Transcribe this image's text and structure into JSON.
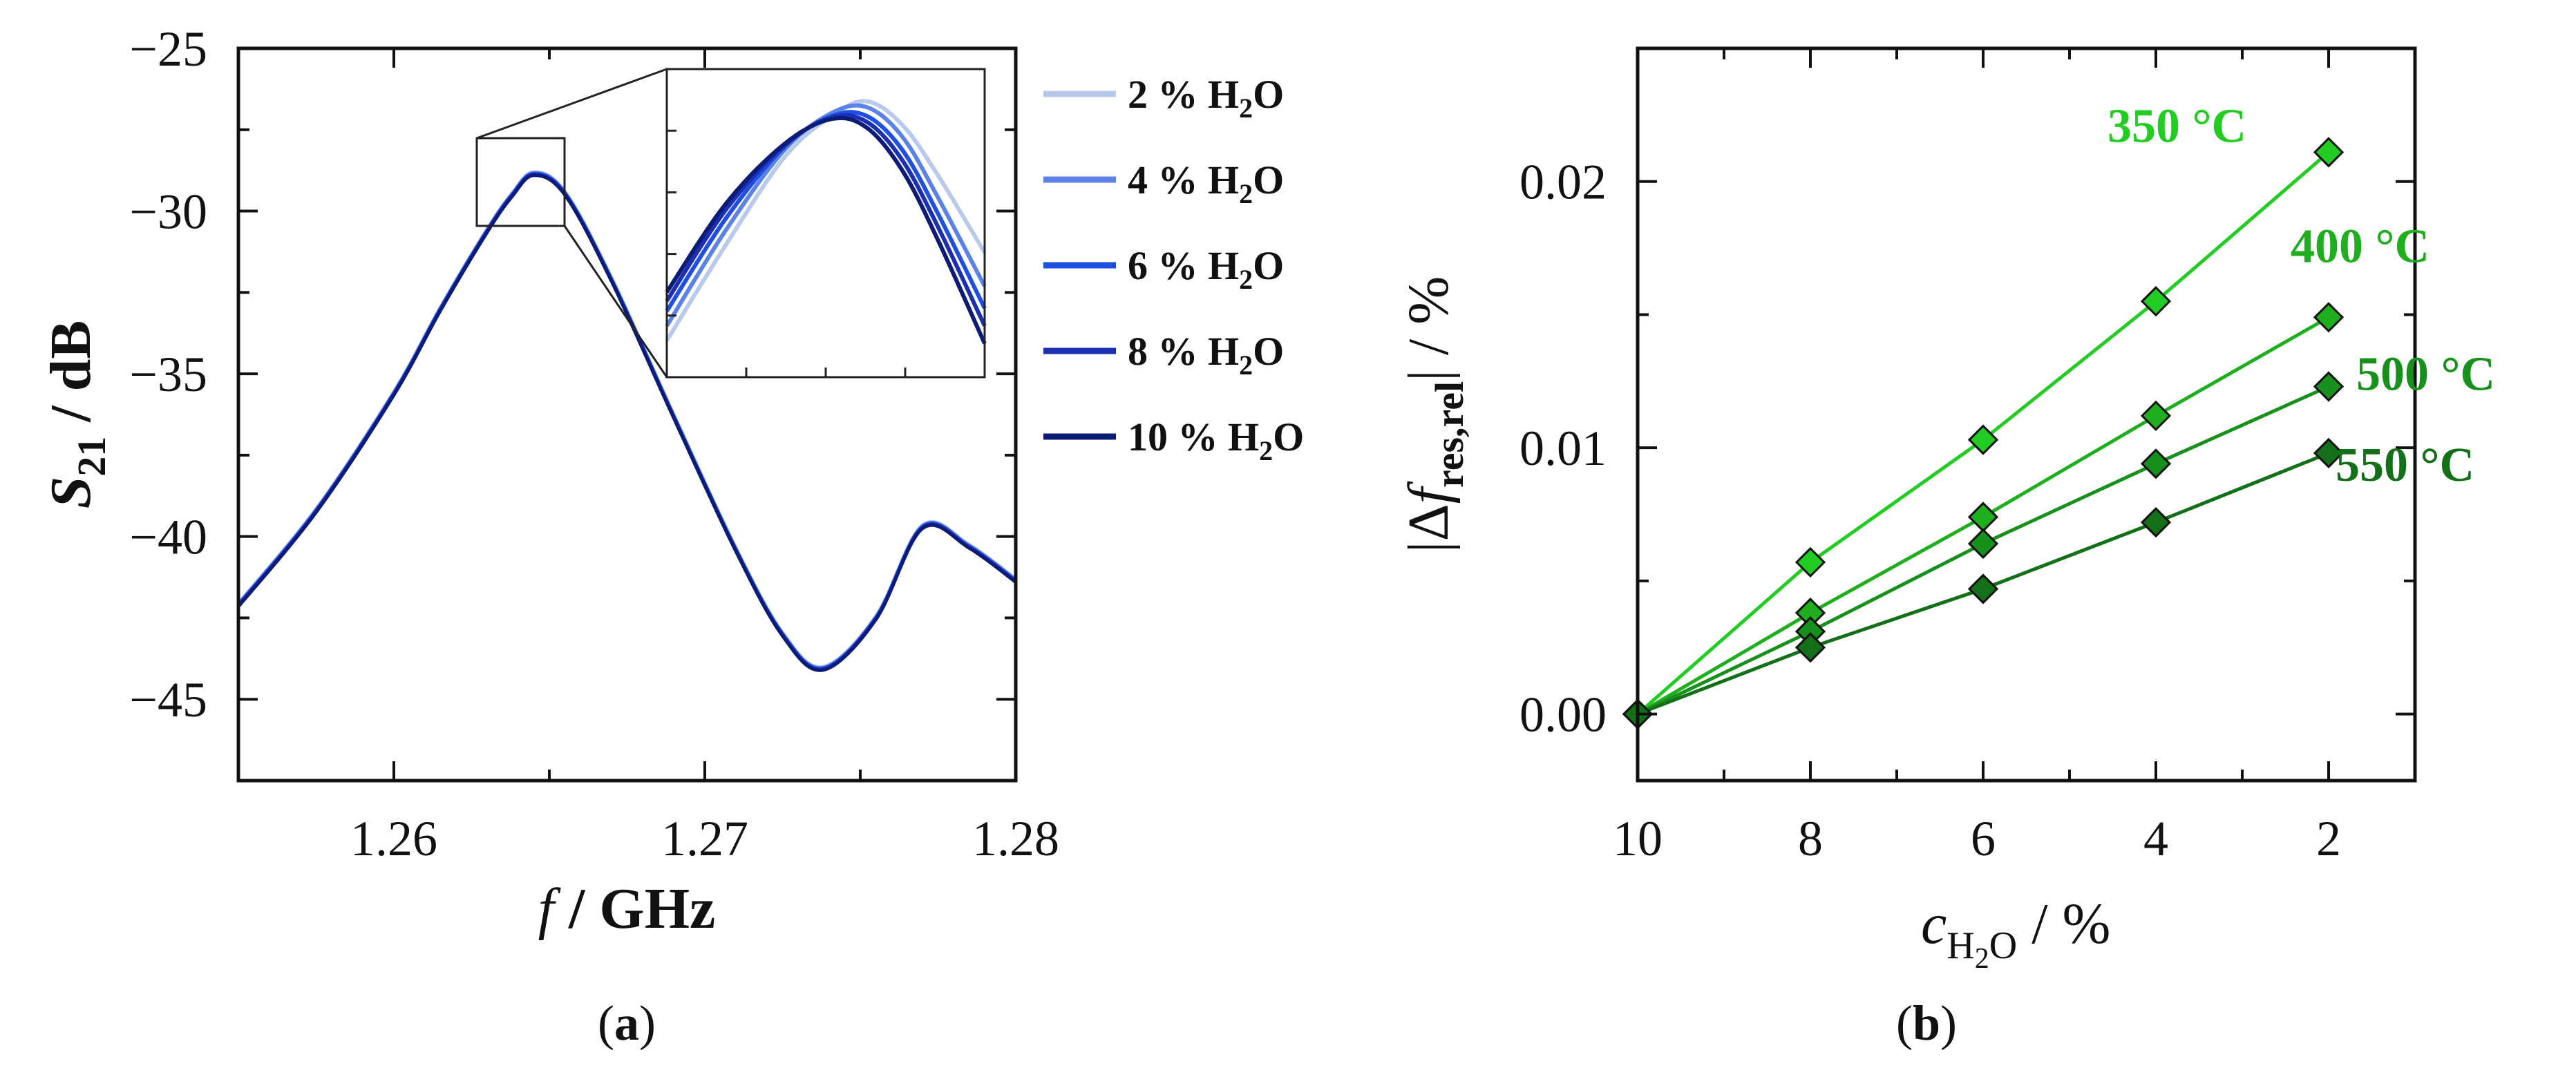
{
  "chart_data": [
    {
      "id": "a",
      "type": "line",
      "caption": "a",
      "xlabel": {
        "var": "f",
        "unit": "GHz"
      },
      "ylabel": {
        "var": "S",
        "sub": "21",
        "unit": "dB"
      },
      "xlim": [
        1.255,
        1.28
      ],
      "ylim": [
        -47.5,
        -25
      ],
      "xticks": [
        "1.26",
        "1.27",
        "1.28"
      ],
      "yticks": [
        "−25",
        "−30",
        "−35",
        "−40",
        "−45"
      ],
      "x": [
        1.255,
        1.2575,
        1.26,
        1.2615,
        1.263,
        1.2638,
        1.2645,
        1.2655,
        1.267,
        1.269,
        1.271,
        1.2725,
        1.2738,
        1.2755,
        1.277,
        1.2785,
        1.28
      ],
      "series": [
        {
          "name": "2 % H",
          "sub": "2",
          "suffix": "O",
          "color": "#b8c9ee",
          "values": [
            -42.1,
            -39.2,
            -35.6,
            -33.0,
            -30.6,
            -29.5,
            -28.85,
            -29.45,
            -32.1,
            -36.3,
            -40.4,
            -43.0,
            -44.05,
            -42.5,
            -39.7,
            -40.3,
            -41.35
          ]
        },
        {
          "name": "4 % H",
          "sub": "2",
          "suffix": "O",
          "color": "#5b82e8",
          "values": [
            -42.1,
            -39.2,
            -35.6,
            -33.0,
            -30.6,
            -29.5,
            -28.85,
            -29.45,
            -32.1,
            -36.3,
            -40.4,
            -43.0,
            -44.05,
            -42.5,
            -39.7,
            -40.3,
            -41.35
          ]
        },
        {
          "name": "6 % H",
          "sub": "2",
          "suffix": "O",
          "color": "#1f4ee6",
          "values": [
            -42.1,
            -39.2,
            -35.6,
            -33.0,
            -30.6,
            -29.5,
            -28.85,
            -29.45,
            -32.1,
            -36.3,
            -40.4,
            -43.0,
            -44.05,
            -42.5,
            -39.7,
            -40.3,
            -41.35
          ]
        },
        {
          "name": "8 % H",
          "sub": "2",
          "suffix": "O",
          "color": "#1b2fb4",
          "values": [
            -42.1,
            -39.2,
            -35.6,
            -33.0,
            -30.6,
            -29.5,
            -28.85,
            -29.45,
            -32.1,
            -36.3,
            -40.4,
            -43.0,
            -44.05,
            -42.5,
            -39.7,
            -40.3,
            -41.35
          ]
        },
        {
          "name": "10 % H",
          "sub": "2",
          "suffix": "O",
          "color": "#0c1a78",
          "values": [
            -42.1,
            -39.2,
            -35.6,
            -33.0,
            -30.6,
            -29.5,
            -28.85,
            -29.45,
            -32.1,
            -36.3,
            -40.4,
            -43.0,
            -44.05,
            -42.5,
            -39.7,
            -40.3,
            -41.35
          ]
        }
      ],
      "inset": {
        "xlim": [
          1.2628,
          1.2655
        ],
        "ylim": [
          -30.5,
          -28.4
        ],
        "x": [
          1.2628,
          1.2633,
          1.2638,
          1.2642,
          1.2645,
          1.2648,
          1.2651,
          1.2655
        ],
        "series_values": [
          [
            -30.25,
            -29.6,
            -29.0,
            -28.72,
            -28.62,
            -28.78,
            -29.12,
            -29.65
          ],
          [
            -30.15,
            -29.5,
            -28.95,
            -28.7,
            -28.66,
            -28.86,
            -29.27,
            -29.88
          ],
          [
            -30.05,
            -29.42,
            -28.93,
            -28.72,
            -28.72,
            -28.95,
            -29.38,
            -30.03
          ],
          [
            -29.98,
            -29.36,
            -28.92,
            -28.73,
            -28.76,
            -29.02,
            -29.47,
            -30.15
          ],
          [
            -29.92,
            -29.32,
            -28.91,
            -28.74,
            -28.8,
            -29.09,
            -29.56,
            -30.27
          ]
        ]
      }
    },
    {
      "id": "b",
      "type": "line",
      "caption": "b",
      "xlabel": {
        "var": "c",
        "sub": "H",
        "sub2": "2",
        "subtail": "O",
        "unit": "%"
      },
      "ylabel": {
        "var": "f",
        "prefix": "Δ",
        "sub": "res,rel",
        "unit": "%"
      },
      "xlim": [
        10,
        1
      ],
      "ylim": [
        -0.0025,
        0.025
      ],
      "xticks": [
        "10",
        "8",
        "6",
        "4",
        "2"
      ],
      "yticks": [
        "0.00",
        "0.01",
        "0.02"
      ],
      "x": [
        10,
        8,
        6,
        4,
        2
      ],
      "series": [
        {
          "name": "350 °C",
          "color": "#22cc22",
          "values": [
            0,
            0.0057,
            0.0103,
            0.0155,
            0.0211
          ]
        },
        {
          "name": "400 °C",
          "color": "#1eae1e",
          "values": [
            0,
            0.0038,
            0.0074,
            0.0112,
            0.0149
          ]
        },
        {
          "name": "500 °C",
          "color": "#17911b",
          "values": [
            0,
            0.0031,
            0.0064,
            0.0094,
            0.0123
          ]
        },
        {
          "name": "550 °C",
          "color": "#136f18",
          "values": [
            0,
            0.0025,
            0.0047,
            0.0072,
            0.0098
          ]
        }
      ]
    }
  ]
}
